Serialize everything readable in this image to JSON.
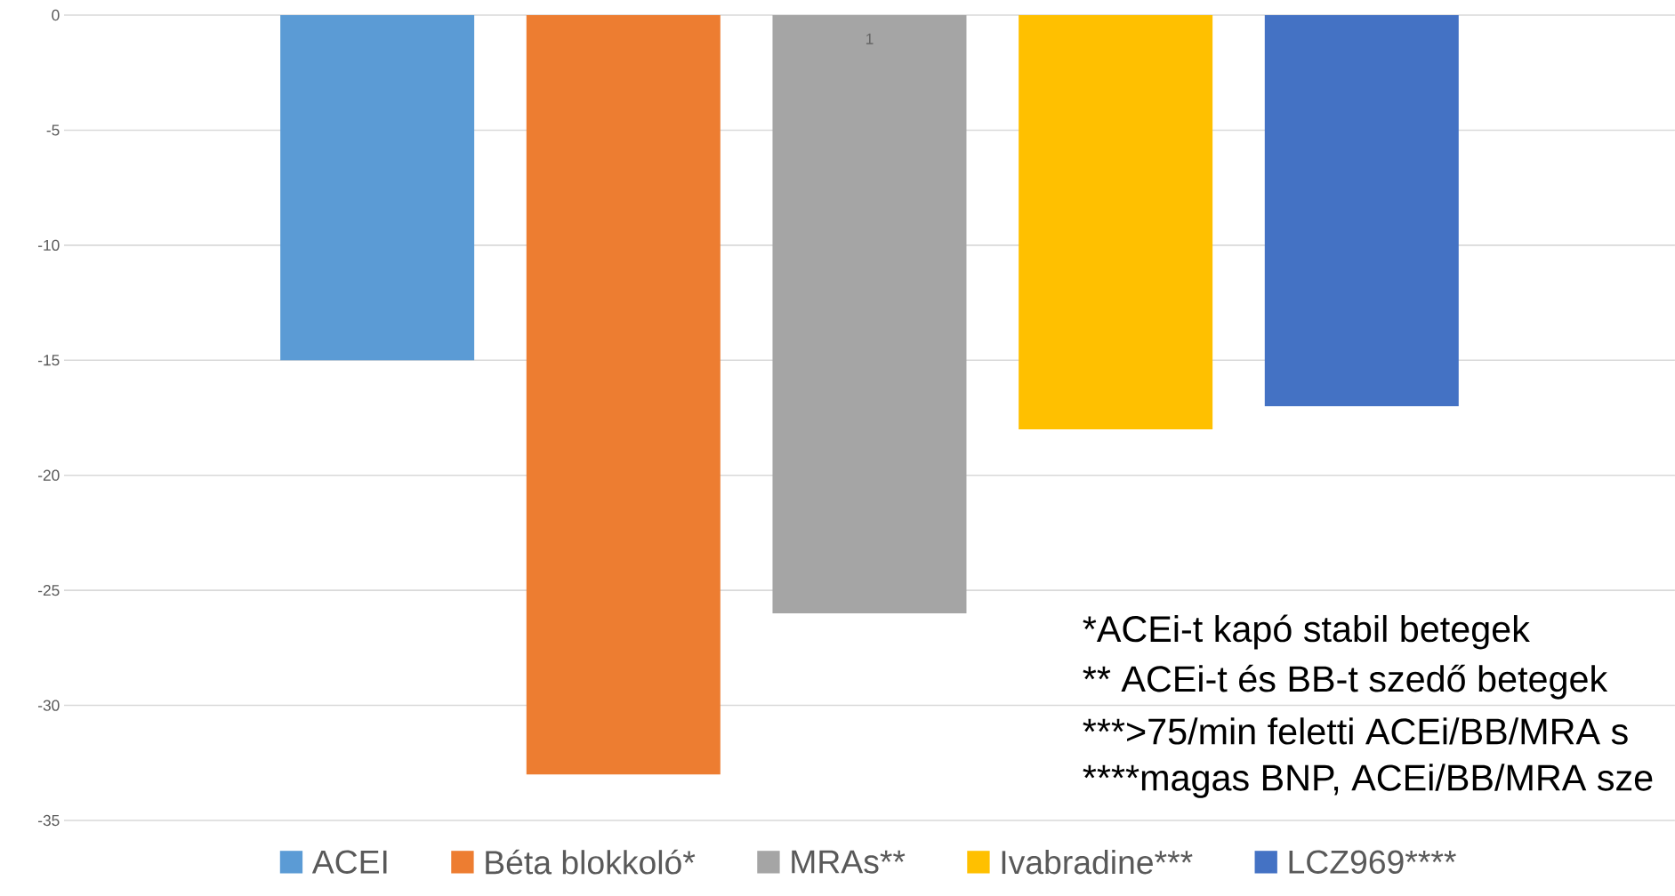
{
  "chart_data": {
    "type": "bar",
    "categories": [
      "1"
    ],
    "series": [
      {
        "name": "ACEI",
        "color": "#5b9bd5",
        "values": [
          -15
        ]
      },
      {
        "name": "Béta blokkoló*",
        "color": "#ed7d31",
        "values": [
          -33
        ]
      },
      {
        "name": "MRAs**",
        "color": "#a5a5a5",
        "values": [
          -26
        ]
      },
      {
        "name": "Ivabradine***",
        "color": "#ffc000",
        "values": [
          -18
        ]
      },
      {
        "name": "LCZ969****",
        "color": "#4472c4",
        "values": [
          -17
        ]
      }
    ],
    "ylim": [
      -35,
      0
    ],
    "yticks": [
      0,
      -5,
      -10,
      -15,
      -20,
      -25,
      -30,
      -35
    ],
    "grid": "y",
    "legend": "bottom",
    "annotations": [
      "*ACEi-t kapó stabil betegek",
      "** ACEi-t és BB-t szedő betegek",
      "***>75/min feletti ACEi/BB/MRA s",
      "****magas BNP, ACEi/BB/MRA sze"
    ]
  }
}
